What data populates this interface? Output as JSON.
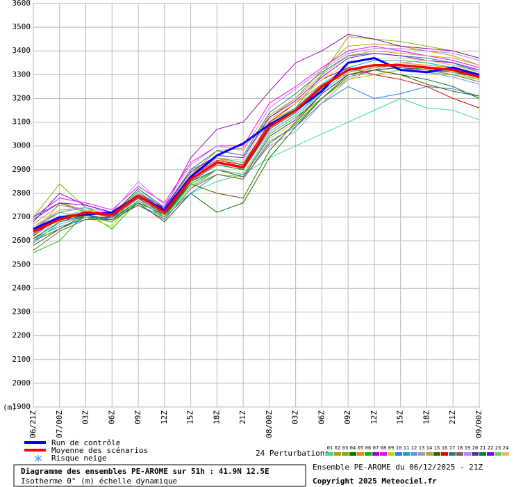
{
  "chart_data": {
    "type": "line",
    "ylabel": "(m)",
    "categories": [
      "06/21Z",
      "07/00Z",
      "03Z",
      "06Z",
      "09Z",
      "12Z",
      "15Z",
      "18Z",
      "21Z",
      "08/00Z",
      "03Z",
      "06Z",
      "09Z",
      "12Z",
      "15Z",
      "18Z",
      "21Z",
      "09/00Z"
    ],
    "ylim": [
      1900,
      3600
    ],
    "yticks": [
      1900,
      2000,
      2100,
      2200,
      2300,
      2400,
      2500,
      2600,
      2700,
      2800,
      2900,
      3000,
      3100,
      3200,
      3300,
      3400,
      3500,
      3600
    ],
    "grid": true,
    "perturbations_label": "24 Perturbations",
    "snow_label": "Risque neige",
    "annotations": [
      "Diagramme des ensembles PE-AROME sur 51h : 41.9N 12.5E",
      "Isotherme 0° (m) échelle dynamique",
      "Ensemble PE-AROME du 06/12/2025 - 21Z",
      "Copyright 2025 Meteociel.fr"
    ],
    "series": [
      {
        "name": "01",
        "color": "#33dd99",
        "linewidth": 1,
        "values": [
          2600,
          2700,
          2730,
          2700,
          2760,
          2720,
          2800,
          2850,
          2880,
          2950,
          3000,
          3050,
          3100,
          3150,
          3200,
          3160,
          3150,
          3110
        ]
      },
      {
        "name": "02",
        "color": "#b8a000",
        "linewidth": 1,
        "values": [
          2650,
          2720,
          2700,
          2680,
          2800,
          2700,
          2880,
          2980,
          2990,
          3120,
          3200,
          3320,
          3420,
          3430,
          3420,
          3400,
          3380,
          3340
        ]
      },
      {
        "name": "03",
        "color": "#80b000",
        "linewidth": 1,
        "values": [
          2700,
          2840,
          2740,
          2700,
          2820,
          2730,
          2900,
          2950,
          2900,
          3100,
          3160,
          3300,
          3460,
          3450,
          3440,
          3420,
          3400,
          3370
        ]
      },
      {
        "name": "04",
        "color": "#007000",
        "linewidth": 1,
        "values": [
          2580,
          2650,
          2700,
          2680,
          2760,
          2680,
          2800,
          2720,
          2760,
          2950,
          3080,
          3200,
          3300,
          3320,
          3300,
          3280,
          3250,
          3200
        ]
      },
      {
        "name": "05",
        "color": "#ff8000",
        "linewidth": 1,
        "values": [
          2620,
          2760,
          2730,
          2700,
          2800,
          2730,
          2880,
          2950,
          2920,
          3100,
          3180,
          3260,
          3300,
          3330,
          3350,
          3340,
          3330,
          3300
        ]
      },
      {
        "name": "06",
        "color": "#00c000",
        "linewidth": 1,
        "values": [
          2550,
          2600,
          2720,
          2650,
          2770,
          2700,
          2840,
          2900,
          2880,
          3050,
          3120,
          3200,
          3280,
          3300,
          3320,
          3330,
          3310,
          3280
        ]
      },
      {
        "name": "07",
        "color": "#a000c0",
        "linewidth": 1,
        "values": [
          2680,
          2800,
          2750,
          2720,
          2780,
          2740,
          2950,
          3070,
          3100,
          3230,
          3350,
          3400,
          3470,
          3450,
          3420,
          3410,
          3400,
          3370
        ]
      },
      {
        "name": "08",
        "color": "#ff00ff",
        "linewidth": 1,
        "values": [
          2700,
          2780,
          2760,
          2730,
          2830,
          2760,
          2930,
          3000,
          3000,
          3180,
          3250,
          3330,
          3400,
          3420,
          3400,
          3380,
          3360,
          3330
        ]
      },
      {
        "name": "09",
        "color": "#b0e000",
        "linewidth": 1,
        "values": [
          2630,
          2700,
          2700,
          2660,
          2800,
          2700,
          2830,
          2880,
          2870,
          3030,
          3100,
          3200,
          3280,
          3300,
          3320,
          3310,
          3300,
          3280
        ]
      },
      {
        "name": "10",
        "color": "#2080ff",
        "linewidth": 1,
        "values": [
          2610,
          2660,
          2690,
          2700,
          2750,
          2700,
          2800,
          2880,
          2860,
          3020,
          3080,
          3180,
          3250,
          3200,
          3220,
          3250,
          3240,
          3210
        ]
      },
      {
        "name": "11",
        "color": "#00b0b0",
        "linewidth": 1,
        "values": [
          2660,
          2720,
          2740,
          2700,
          2810,
          2720,
          2870,
          2950,
          2930,
          3090,
          3160,
          3260,
          3330,
          3360,
          3360,
          3350,
          3330,
          3300
        ]
      },
      {
        "name": "12",
        "color": "#6090ff",
        "linewidth": 1,
        "values": [
          2590,
          2680,
          2700,
          2690,
          2770,
          2700,
          2850,
          2920,
          2900,
          3060,
          3130,
          3230,
          3310,
          3340,
          3330,
          3310,
          3290,
          3260
        ]
      },
      {
        "name": "13",
        "color": "#a0a0a0",
        "linewidth": 1,
        "values": [
          2640,
          2700,
          2720,
          2710,
          2780,
          2690,
          2820,
          2900,
          2870,
          3000,
          3060,
          3180,
          3280,
          3320,
          3350,
          3360,
          3340,
          3320
        ]
      },
      {
        "name": "14",
        "color": "#c0a040",
        "linewidth": 1,
        "values": [
          2670,
          2750,
          2730,
          2700,
          2790,
          2730,
          2880,
          2960,
          2950,
          3130,
          3200,
          3300,
          3380,
          3400,
          3390,
          3380,
          3370,
          3340
        ]
      },
      {
        "name": "15",
        "color": "#406000",
        "linewidth": 1,
        "values": [
          2600,
          2650,
          2710,
          2680,
          2760,
          2710,
          2840,
          2800,
          2780,
          2980,
          3100,
          3220,
          3300,
          3320,
          3300,
          3260,
          3230,
          3210
        ]
      },
      {
        "name": "16",
        "color": "#e00000",
        "linewidth": 1,
        "values": [
          2620,
          2700,
          2720,
          2700,
          2800,
          2720,
          2870,
          2940,
          2920,
          3100,
          3180,
          3280,
          3330,
          3300,
          3280,
          3250,
          3200,
          3160
        ]
      },
      {
        "name": "17",
        "color": "#208080",
        "linewidth": 1,
        "values": [
          2700,
          2760,
          2720,
          2710,
          2820,
          2740,
          2900,
          2980,
          2960,
          3140,
          3220,
          3310,
          3380,
          3390,
          3380,
          3370,
          3350,
          3310
        ]
      },
      {
        "name": "18",
        "color": "#806040",
        "linewidth": 1,
        "values": [
          2560,
          2640,
          2690,
          2690,
          2750,
          2690,
          2820,
          2880,
          2860,
          3010,
          3090,
          3200,
          3290,
          3320,
          3330,
          3320,
          3300,
          3270
        ]
      },
      {
        "name": "19",
        "color": "#c080ff",
        "linewidth": 1,
        "values": [
          2650,
          2730,
          2740,
          2720,
          2850,
          2750,
          2920,
          3000,
          2980,
          3160,
          3240,
          3320,
          3390,
          3410,
          3410,
          3400,
          3390,
          3360
        ]
      },
      {
        "name": "20",
        "color": "#404080",
        "linewidth": 1,
        "values": [
          2630,
          2690,
          2700,
          2700,
          2780,
          2710,
          2850,
          2900,
          2870,
          3040,
          3110,
          3220,
          3300,
          3320,
          3330,
          3320,
          3310,
          3290
        ]
      },
      {
        "name": "21",
        "color": "#008040",
        "linewidth": 1,
        "values": [
          2610,
          2680,
          2710,
          2690,
          2770,
          2700,
          2850,
          2920,
          2900,
          3070,
          3140,
          3240,
          3320,
          3340,
          3340,
          3330,
          3320,
          3300
        ]
      },
      {
        "name": "22",
        "color": "#8000ff",
        "linewidth": 1,
        "values": [
          2690,
          2760,
          2750,
          2720,
          2800,
          2740,
          2890,
          2960,
          2950,
          3120,
          3190,
          3290,
          3370,
          3390,
          3380,
          3360,
          3350,
          3320
        ]
      },
      {
        "name": "23",
        "color": "#60d060",
        "linewidth": 1,
        "values": [
          2600,
          2670,
          2700,
          2680,
          2770,
          2700,
          2830,
          2900,
          2880,
          3050,
          3120,
          3230,
          3310,
          3330,
          3340,
          3330,
          3310,
          3280
        ]
      },
      {
        "name": "24",
        "color": "#e0c060",
        "linewidth": 1,
        "values": [
          2660,
          2730,
          2730,
          2720,
          2800,
          2720,
          2880,
          2950,
          2940,
          3110,
          3180,
          3280,
          3350,
          3370,
          3370,
          3360,
          3340,
          3310
        ]
      },
      {
        "name": "Run de contrôle",
        "color": "#0000ff",
        "linewidth": 3,
        "values": [
          2650,
          2700,
          2710,
          2720,
          2790,
          2730,
          2870,
          2960,
          3010,
          3090,
          3150,
          3230,
          3350,
          3370,
          3320,
          3310,
          3330,
          3300
        ]
      },
      {
        "name": "Moyenne des scénarios",
        "color": "#ff0000",
        "linewidth": 3.5,
        "values": [
          2640,
          2690,
          2720,
          2710,
          2790,
          2720,
          2860,
          2930,
          2910,
          3080,
          3150,
          3250,
          3320,
          3340,
          3340,
          3330,
          3320,
          3290
        ]
      }
    ]
  }
}
